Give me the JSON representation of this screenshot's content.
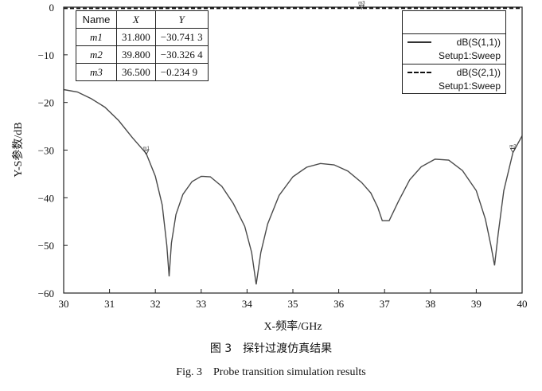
{
  "chart_data": {
    "type": "line",
    "xlabel": "X-频率/GHz",
    "ylabel": "Y-S参数/dB",
    "xlim": [
      30,
      40
    ],
    "ylim": [
      -60,
      0
    ],
    "x_ticks": [
      "30",
      "31",
      "32",
      "33",
      "34",
      "35",
      "36",
      "37",
      "38",
      "39",
      "40"
    ],
    "y_ticks": [
      "0",
      "−10",
      "−20",
      "−30",
      "−40",
      "−50",
      "−60"
    ],
    "grid": false,
    "legend_position": "top-right",
    "series": [
      {
        "name": "dB(S(1,1))",
        "name_line2": "Setup1:Sweep",
        "style": "solid",
        "color": "#4a4a4a",
        "points": [
          [
            30.0,
            -17.3
          ],
          [
            30.3,
            -17.8
          ],
          [
            30.6,
            -19.2
          ],
          [
            30.9,
            -21.0
          ],
          [
            31.2,
            -23.8
          ],
          [
            31.5,
            -27.4
          ],
          [
            31.8,
            -30.7
          ],
          [
            32.0,
            -35.5
          ],
          [
            32.15,
            -41.5
          ],
          [
            32.25,
            -50.0
          ],
          [
            32.3,
            -56.5
          ],
          [
            32.35,
            -49.5
          ],
          [
            32.45,
            -43.5
          ],
          [
            32.6,
            -39.3
          ],
          [
            32.8,
            -36.6
          ],
          [
            33.0,
            -35.5
          ],
          [
            33.2,
            -35.6
          ],
          [
            33.45,
            -37.6
          ],
          [
            33.7,
            -41.2
          ],
          [
            33.95,
            -46.0
          ],
          [
            34.1,
            -51.5
          ],
          [
            34.2,
            -58.2
          ],
          [
            34.3,
            -51.5
          ],
          [
            34.45,
            -45.5
          ],
          [
            34.7,
            -39.5
          ],
          [
            35.0,
            -35.6
          ],
          [
            35.3,
            -33.6
          ],
          [
            35.6,
            -32.8
          ],
          [
            35.9,
            -33.1
          ],
          [
            36.2,
            -34.4
          ],
          [
            36.5,
            -36.8
          ],
          [
            36.7,
            -39.0
          ],
          [
            36.85,
            -42.0
          ],
          [
            36.95,
            -44.8
          ],
          [
            37.1,
            -44.8
          ],
          [
            37.3,
            -40.8
          ],
          [
            37.55,
            -36.2
          ],
          [
            37.8,
            -33.5
          ],
          [
            38.1,
            -31.9
          ],
          [
            38.4,
            -32.1
          ],
          [
            38.7,
            -34.3
          ],
          [
            39.0,
            -38.5
          ],
          [
            39.2,
            -44.5
          ],
          [
            39.32,
            -50.0
          ],
          [
            39.4,
            -54.2
          ],
          [
            39.48,
            -47.5
          ],
          [
            39.6,
            -38.5
          ],
          [
            39.8,
            -30.5
          ],
          [
            40.0,
            -27.0
          ]
        ]
      },
      {
        "name": "dB(S(2,1))",
        "name_line2": "Setup1:Sweep",
        "style": "dashed",
        "color": "#111111",
        "points": [
          [
            30.0,
            -0.25
          ],
          [
            35.0,
            -0.24
          ],
          [
            40.0,
            -0.22
          ]
        ]
      }
    ],
    "markers": [
      {
        "name": "m1",
        "x": 31.8,
        "y": -30.7413
      },
      {
        "name": "m2",
        "x": 39.8,
        "y": -30.3264
      },
      {
        "name": "m3",
        "x": 36.5,
        "y": -0.2349
      }
    ]
  },
  "marker_table": {
    "headers": [
      "Name",
      "X",
      "Y"
    ],
    "rows": [
      {
        "name": "m1",
        "x": "31.800",
        "y": "−30.741 3"
      },
      {
        "name": "m2",
        "x": "39.800",
        "y": "−30.326 4"
      },
      {
        "name": "m3",
        "x": "36.500",
        "y": "−0.234 9"
      }
    ]
  },
  "caption": {
    "chinese": "图 3　探针过渡仿真结果",
    "english": "Fig. 3　Probe transition simulation results"
  }
}
